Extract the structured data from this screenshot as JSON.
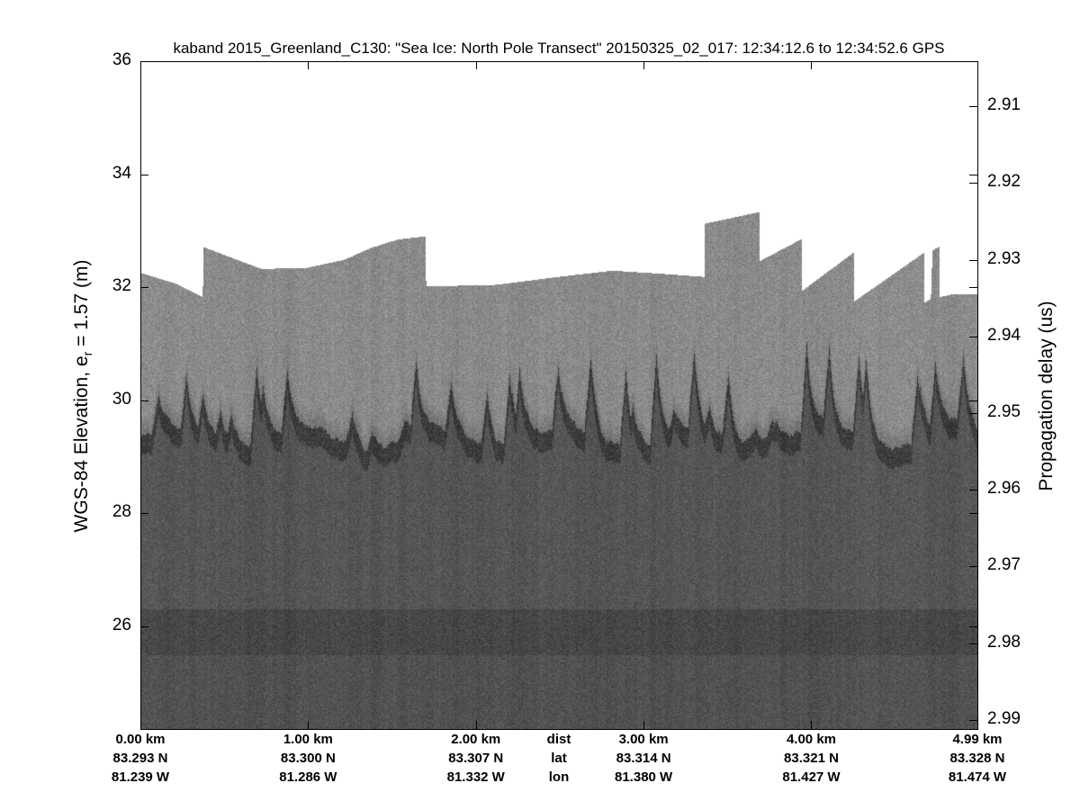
{
  "chart_data": {
    "type": "heatmap",
    "title": "kaband 2015_Greenland_C130: \"Sea Ice: North Pole Transect\"  20150325_02_017: 12:34:12.6 to 12:34:52.6 GPS",
    "ylabel_prefix": "WGS-84 Elevation, e",
    "ylabel_sub": "r",
    "ylabel_suffix": " = 1.57 (m)",
    "ylabel_right": "Propagation delay (us)",
    "ylim": [
      24.18,
      36
    ],
    "yticks": [
      "36",
      "34",
      "32",
      "30",
      "28",
      "26"
    ],
    "ytick_values": [
      36,
      34,
      32,
      30,
      28,
      26
    ],
    "yticks_right": [
      "2.91",
      "2.92",
      "2.93",
      "2.94",
      "2.95",
      "2.96",
      "2.97",
      "2.98",
      "2.99"
    ],
    "ytick_right_values": [
      2.91,
      2.92,
      2.93,
      2.94,
      2.95,
      2.96,
      2.97,
      2.98,
      2.99
    ],
    "ylim_right": [
      2.9041,
      2.9912
    ],
    "xlim_km": [
      0,
      4.99
    ],
    "x_rows": [
      {
        "label": "dist",
        "values": [
          "0.00 km",
          "1.00 km",
          "2.00 km",
          "3.00 km",
          "4.00 km",
          "4.99 km"
        ]
      },
      {
        "label": "lat",
        "values": [
          "83.293 N",
          "83.300 N",
          "83.307 N",
          "83.314 N",
          "83.321 N",
          "83.328 N"
        ]
      },
      {
        "label": "lon",
        "values": [
          "81.239 W",
          "81.286 W",
          "81.332 W",
          "81.380 W",
          "81.427 W",
          "81.474 W"
        ]
      }
    ],
    "xtick_km": [
      0,
      1,
      2,
      3,
      4,
      4.99
    ],
    "surface_profile_km_elev": [
      [
        0,
        32.26
      ],
      [
        0.21,
        32.07
      ],
      [
        0.37,
        31.83
      ],
      [
        0.371,
        32.72
      ],
      [
        0.72,
        32.33
      ],
      [
        0.99,
        32.35
      ],
      [
        1.21,
        32.49
      ],
      [
        1.37,
        32.7
      ],
      [
        1.53,
        32.85
      ],
      [
        1.7,
        32.91
      ],
      [
        1.701,
        32.02
      ],
      [
        2.12,
        32.05
      ],
      [
        2.49,
        32.19
      ],
      [
        2.81,
        32.3
      ],
      [
        3.08,
        32.25
      ],
      [
        3.36,
        32.19
      ],
      [
        3.361,
        33.13
      ],
      [
        3.69,
        33.34
      ],
      [
        3.691,
        32.47
      ],
      [
        3.94,
        32.86
      ],
      [
        3.941,
        31.94
      ],
      [
        4.25,
        32.62
      ],
      [
        4.251,
        31.75
      ],
      [
        4.67,
        32.62
      ],
      [
        4.671,
        31.73
      ],
      [
        4.71,
        31.8
      ],
      [
        4.72,
        32.66
      ],
      [
        4.76,
        32.72
      ],
      [
        4.761,
        31.83
      ],
      [
        4.85,
        31.89
      ],
      [
        4.99,
        31.89
      ]
    ],
    "layers": [
      {
        "name_visible": false,
        "elevation": 29.3,
        "description": "snow-ice interface (dark reflector)"
      },
      {
        "name_visible": false,
        "elevation": 25.9,
        "description": "deeper dark band"
      }
    ],
    "colormap": "gray",
    "colors": {
      "background": "#ffffff",
      "upper_layer": "#8a8a8a",
      "lower_layer": "#555555"
    }
  }
}
